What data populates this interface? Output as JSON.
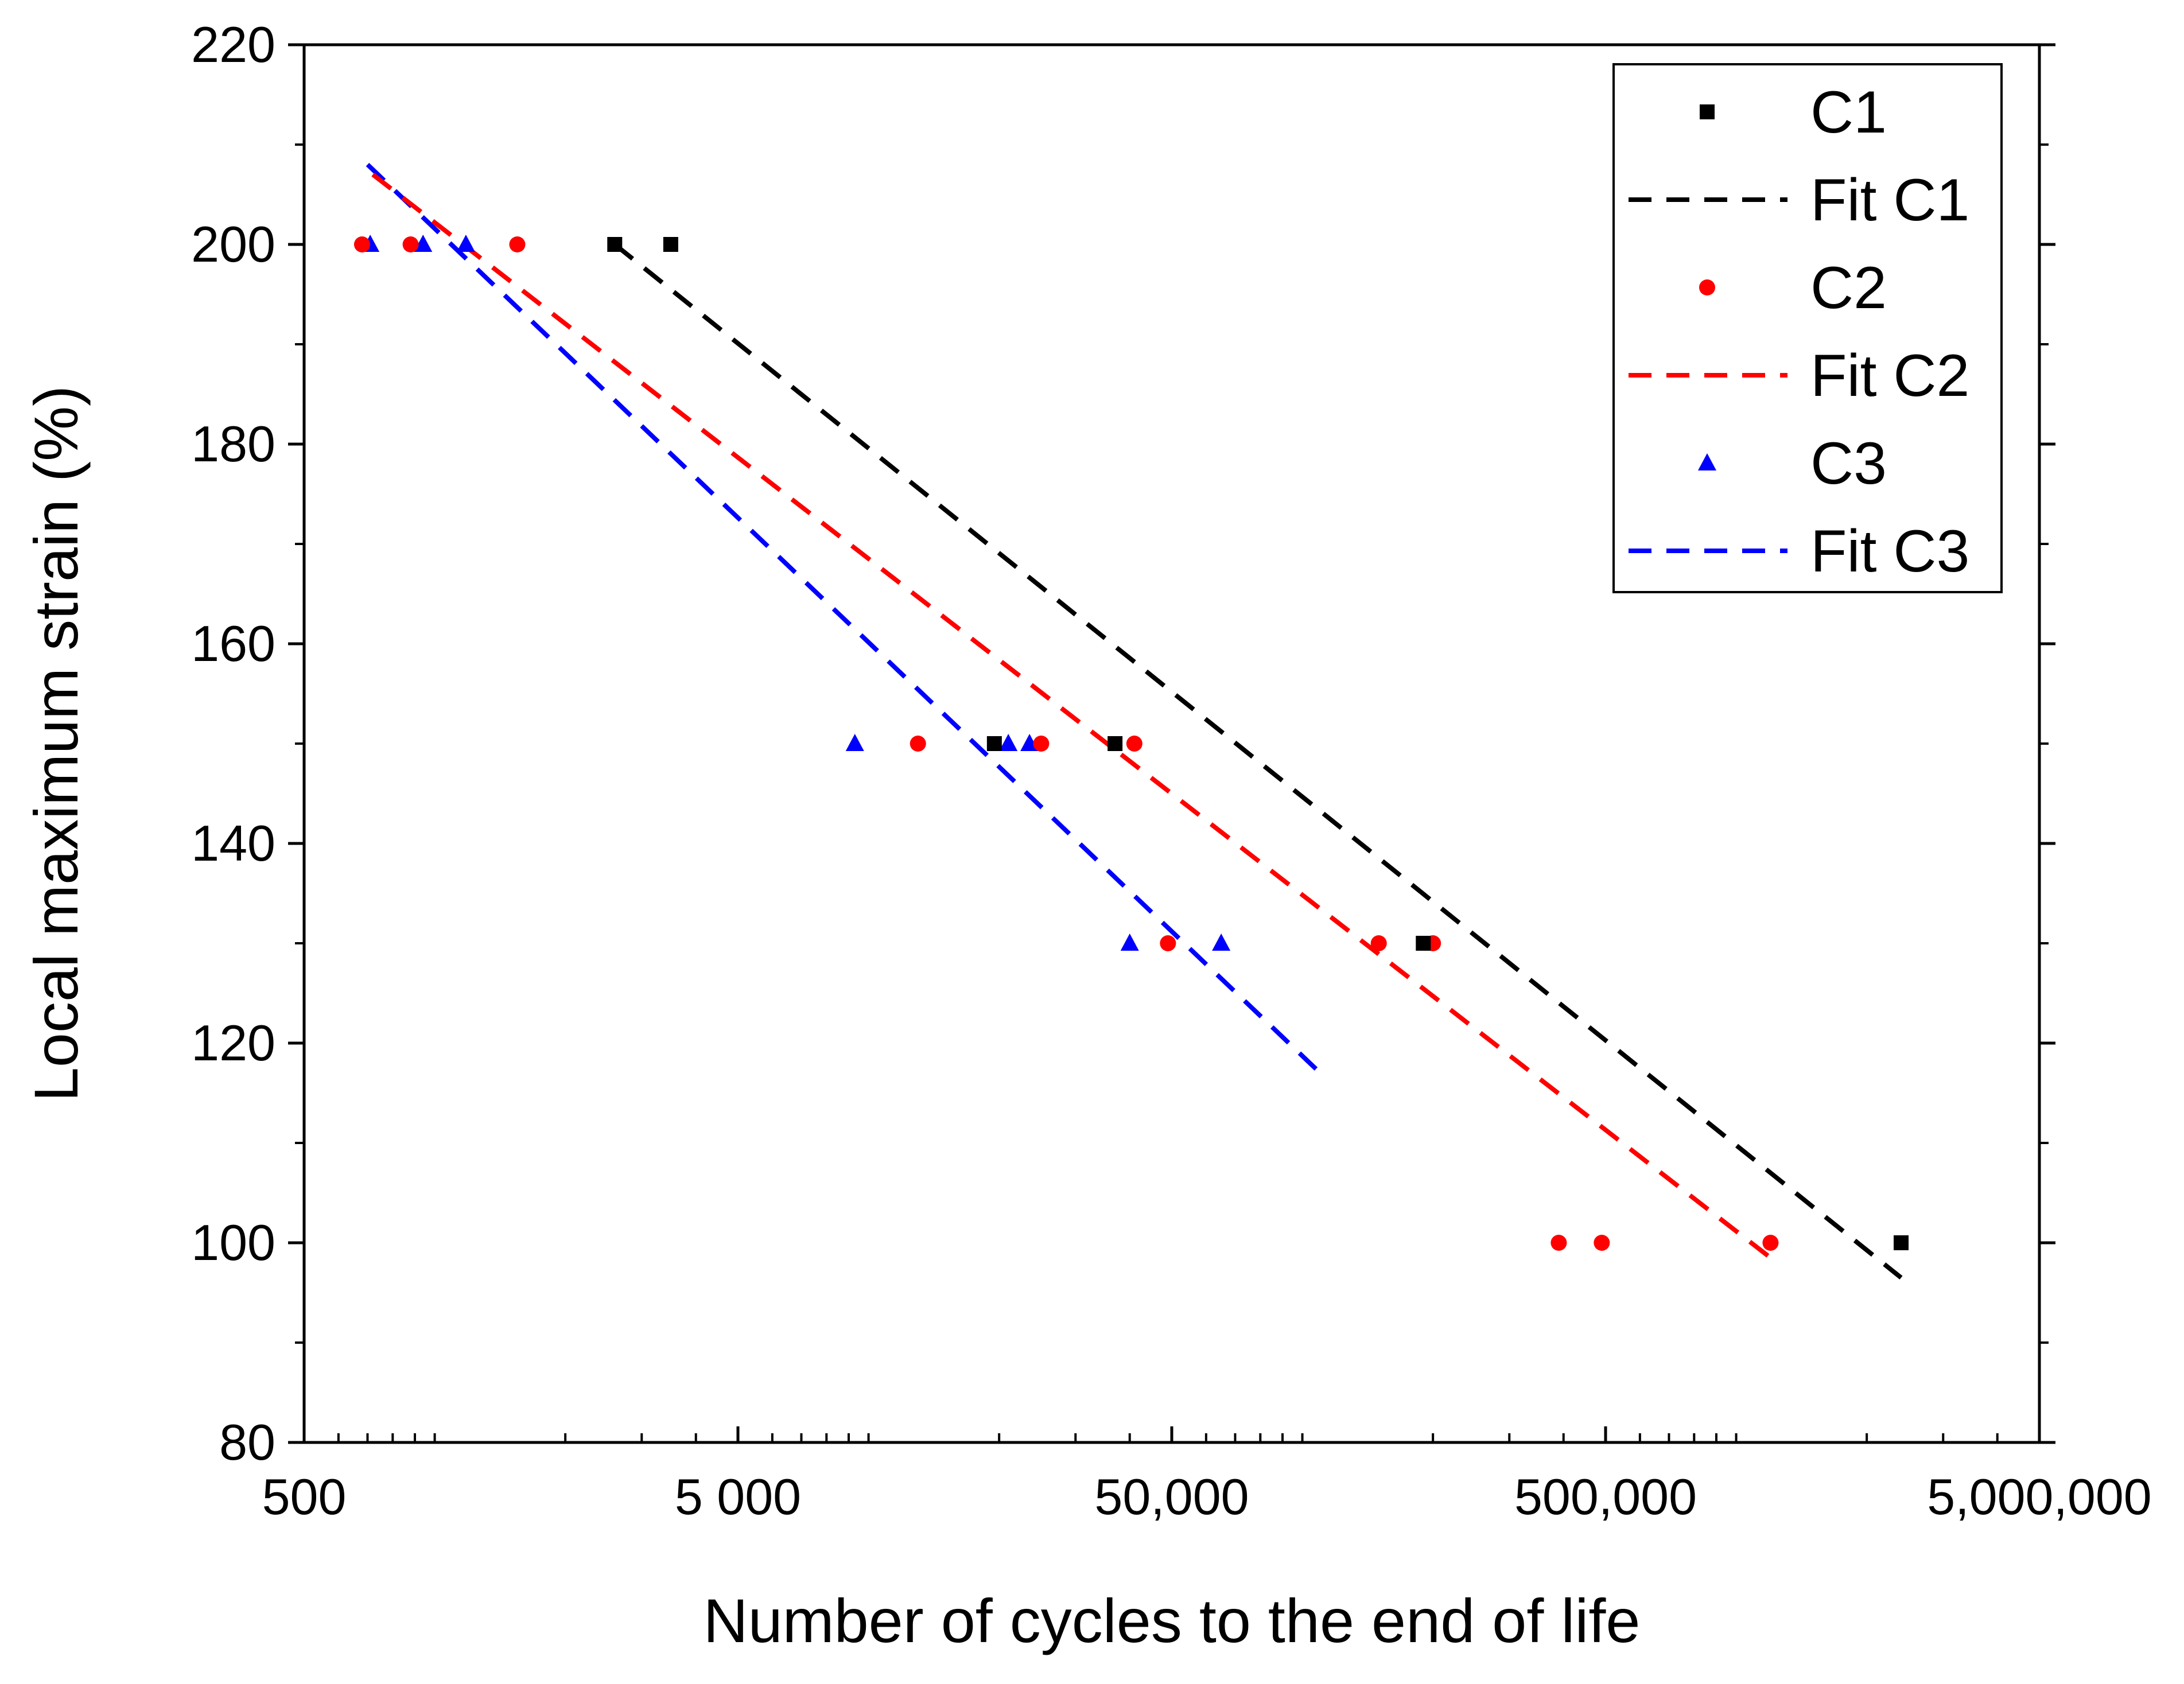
{
  "chart_data": {
    "type": "scatter",
    "title": "",
    "xlabel": "Number of cycles to the end of life",
    "ylabel": "Local maximum strain (%)",
    "xscale": "log",
    "xlim": [
      500,
      5000000
    ],
    "ylim": [
      80,
      220
    ],
    "x_ticks": [
      {
        "value": 500,
        "label": "500"
      },
      {
        "value": 5000,
        "label": "5 000"
      },
      {
        "value": 50000,
        "label": "50,000"
      },
      {
        "value": 500000,
        "label": "500,000"
      },
      {
        "value": 5000000,
        "label": "5,000,000"
      }
    ],
    "y_ticks": [
      {
        "value": 80,
        "label": "80"
      },
      {
        "value": 100,
        "label": "100"
      },
      {
        "value": 120,
        "label": "120"
      },
      {
        "value": 140,
        "label": "140"
      },
      {
        "value": 160,
        "label": "160"
      },
      {
        "value": 180,
        "label": "180"
      },
      {
        "value": 200,
        "label": "200"
      },
      {
        "value": 220,
        "label": "220"
      }
    ],
    "legend_position": "top-right",
    "series": [
      {
        "name": "C1",
        "kind": "points",
        "marker": "square",
        "color": "#000000",
        "points": [
          {
            "x": 2600,
            "y": 200
          },
          {
            "x": 3500,
            "y": 200
          },
          {
            "x": 19500,
            "y": 150
          },
          {
            "x": 37000,
            "y": 150
          },
          {
            "x": 190000,
            "y": 130
          },
          {
            "x": 2400000,
            "y": 100
          }
        ]
      },
      {
        "name": "Fit C1",
        "kind": "fit",
        "color": "#000000",
        "points": [
          {
            "x": 2600,
            "y": 200
          },
          {
            "x": 2400000,
            "y": 96.5
          }
        ]
      },
      {
        "name": "C2",
        "kind": "points",
        "marker": "circle",
        "color": "#ff0000",
        "points": [
          {
            "x": 680,
            "y": 200
          },
          {
            "x": 880,
            "y": 200
          },
          {
            "x": 1550,
            "y": 200
          },
          {
            "x": 13000,
            "y": 150
          },
          {
            "x": 25000,
            "y": 150
          },
          {
            "x": 41000,
            "y": 150
          },
          {
            "x": 49000,
            "y": 130
          },
          {
            "x": 150000,
            "y": 130
          },
          {
            "x": 200000,
            "y": 130
          },
          {
            "x": 390000,
            "y": 100
          },
          {
            "x": 490000,
            "y": 100
          },
          {
            "x": 1200000,
            "y": 100
          }
        ]
      },
      {
        "name": "Fit C2",
        "kind": "fit",
        "color": "#ff0000",
        "points": [
          {
            "x": 720,
            "y": 207
          },
          {
            "x": 1200000,
            "y": 98.5
          }
        ]
      },
      {
        "name": "C3",
        "kind": "points",
        "marker": "triangle",
        "color": "#0000ff",
        "points": [
          {
            "x": 710,
            "y": 200
          },
          {
            "x": 940,
            "y": 200
          },
          {
            "x": 1180,
            "y": 200
          },
          {
            "x": 9300,
            "y": 150
          },
          {
            "x": 21000,
            "y": 150
          },
          {
            "x": 23500,
            "y": 150
          },
          {
            "x": 40000,
            "y": 130
          },
          {
            "x": 65000,
            "y": 130
          }
        ]
      },
      {
        "name": "Fit C3",
        "kind": "fit",
        "color": "#0000ff",
        "points": [
          {
            "x": 700,
            "y": 208
          },
          {
            "x": 110000,
            "y": 117
          }
        ]
      }
    ]
  }
}
